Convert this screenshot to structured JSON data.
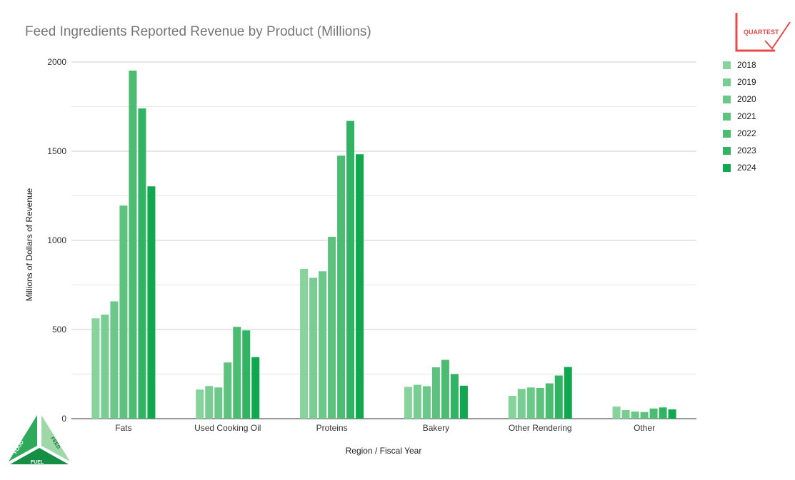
{
  "chart_data": {
    "type": "bar",
    "title": "Feed Ingredients Reported Revenue by Product (Millions)",
    "xlabel": "Region / Fiscal Year",
    "ylabel": "Millions of Dollars of Revenue",
    "ylim": [
      0,
      2000
    ],
    "yticks": [
      "0",
      "500",
      "1000",
      "1500",
      "2000"
    ],
    "grid": true,
    "legend_position": "right",
    "categories": [
      "Fats",
      "Used Cooking Oil",
      "Proteins",
      "Bakery",
      "Other Rendering",
      "Other"
    ],
    "series": [
      {
        "name": "2018",
        "color": "#86d39c",
        "values": [
          563,
          163,
          840,
          178,
          128,
          68
        ]
      },
      {
        "name": "2019",
        "color": "#79cd92",
        "values": [
          583,
          183,
          790,
          190,
          167,
          48
        ]
      },
      {
        "name": "2020",
        "color": "#6bc888",
        "values": [
          658,
          175,
          827,
          182,
          175,
          40
        ]
      },
      {
        "name": "2021",
        "color": "#5cc27d",
        "values": [
          1195,
          315,
          1020,
          288,
          172,
          37
        ]
      },
      {
        "name": "2022",
        "color": "#4bbc72",
        "values": [
          1952,
          515,
          1475,
          330,
          198,
          57
        ]
      },
      {
        "name": "2023",
        "color": "#31b364",
        "values": [
          1740,
          495,
          1670,
          250,
          242,
          63
        ]
      },
      {
        "name": "2024",
        "color": "#0fa84f",
        "values": [
          1303,
          345,
          1483,
          185,
          290,
          52
        ]
      }
    ]
  },
  "logos": {
    "quartest": "QUARTEST",
    "badge_food": "FOOD",
    "badge_feed": "FEED",
    "badge_fuel": "FUEL"
  },
  "colors": {
    "gridline": "#cccccc",
    "minor_gridline": "#e6e6e6",
    "quartest_red": "#e84a4a"
  }
}
